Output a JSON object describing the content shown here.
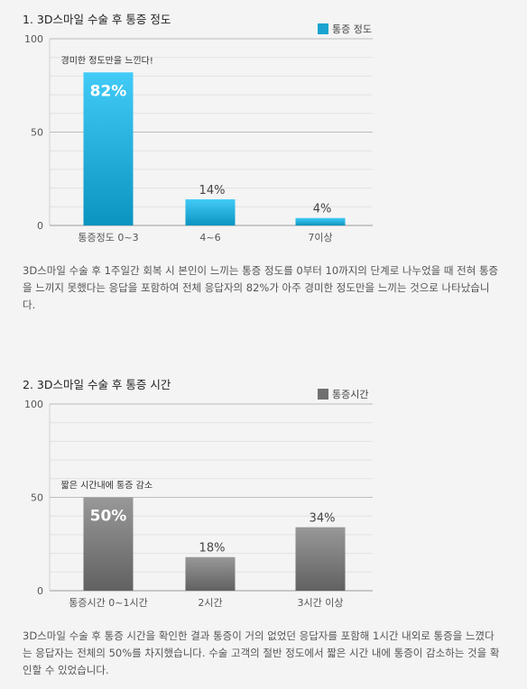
{
  "charts": [
    {
      "title": "1. 3D스마일 수술 후 통증 정도",
      "legend": "통증 정도",
      "annotation": "경미한 정도만을 느낀다!",
      "description": "3D스마일 수술 후 1주일간 회복 시 본인이 느끼는 통증 정도를 0부터 10까지의 단계로 나누었을 때 전혀 통증을 느끼지 못했다는 응답을 포함하여 전체 응답자의 82%가 아주 경미한 정도만을 느끼는 것으로 나타났습니다."
    },
    {
      "title": "2. 3D스마일 수술 후 통증 시간",
      "legend": "통증시간",
      "annotation": "짧은 시간내에 통증 감소",
      "description": "3D스마일 수술 후 통증 시간을 확인한 결과 통증이 거의 없었던 응답자를 포함해 1시간 내외로 통증을 느꼈다는 응답자는 전체의 50%를 차지했습니다. 수술 고객의 절반 정도에서 짧은 시간 내에 통증이 감소하는 것을 확인할 수 있었습니다."
    }
  ],
  "chart_data": [
    {
      "type": "bar",
      "title": "1. 3D스마일 수술 후 통증 정도",
      "categories": [
        "통증정도 0~3",
        "4~6",
        "7이상"
      ],
      "values": [
        82,
        14,
        4
      ],
      "value_labels": [
        "82%",
        "14%",
        "4%"
      ],
      "series": [
        {
          "name": "통증 정도",
          "values": [
            82,
            14,
            4
          ]
        }
      ],
      "ylim": [
        0,
        100
      ],
      "yticks": [
        "0",
        "50",
        "100"
      ],
      "grid": true,
      "legend_position": "top-right",
      "color": "#1aa3cf"
    },
    {
      "type": "bar",
      "title": "2. 3D스마일 수술 후 통증 시간",
      "categories": [
        "통증시간 0~1시간",
        "2시간",
        "3시간 이상"
      ],
      "values": [
        50,
        18,
        34
      ],
      "value_labels": [
        "50%",
        "18%",
        "34%"
      ],
      "series": [
        {
          "name": "통증시간",
          "values": [
            50,
            18,
            34
          ]
        }
      ],
      "ylim": [
        0,
        100
      ],
      "yticks": [
        "0",
        "50",
        "100"
      ],
      "grid": true,
      "legend_position": "top-right",
      "color": "#707070"
    }
  ]
}
